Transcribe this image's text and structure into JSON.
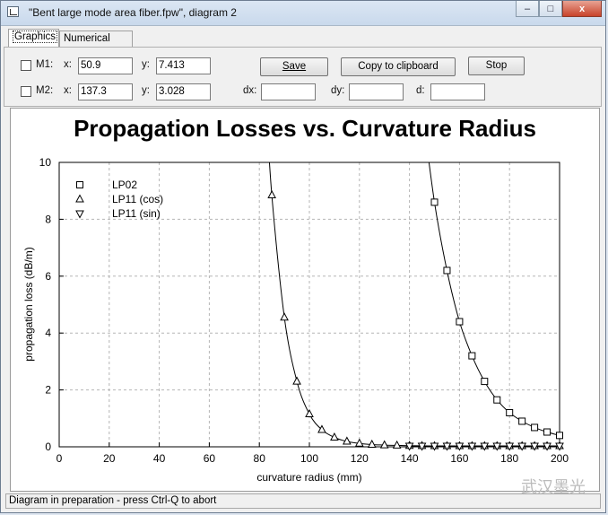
{
  "window": {
    "title": "\"Bent large mode area fiber.fpw\", diagram 2",
    "minimize_glyph": "–",
    "maximize_glyph": "□",
    "close_glyph": "x"
  },
  "tabs": [
    {
      "label": "Graphics",
      "active": true
    },
    {
      "label": "Numerical data",
      "active": false
    }
  ],
  "markers": {
    "m1": {
      "label": "M1:",
      "x_label": "x:",
      "x_value": "50.9",
      "y_label": "y:",
      "y_value": "7.413",
      "checked": false
    },
    "m2": {
      "label": "M2:",
      "x_label": "x:",
      "x_value": "137.3",
      "y_label": "y:",
      "y_value": "3.028",
      "checked": false
    }
  },
  "buttons": {
    "save": "Save",
    "copy": "Copy to clipboard",
    "stop": "Stop"
  },
  "deltas": {
    "dx_label": "dx:",
    "dx_value": "",
    "dy_label": "dy:",
    "dy_value": "",
    "d_label": "d:",
    "d_value": ""
  },
  "status": "Diagram in preparation - press Ctrl-Q to abort",
  "watermark": "武汉墨光",
  "chart_data": {
    "type": "line",
    "title": "Propagation Losses vs. Curvature Radius",
    "xlabel": "curvature radius (mm)",
    "ylabel": "propagation loss (dB/m)",
    "xlim": [
      0,
      200
    ],
    "ylim": [
      0,
      10
    ],
    "xticks": [
      0,
      20,
      40,
      60,
      80,
      100,
      120,
      140,
      160,
      180,
      200
    ],
    "yticks": [
      0,
      2,
      4,
      6,
      8,
      10
    ],
    "grid": true,
    "legend_position": "top-left",
    "series": [
      {
        "name": "LP02",
        "marker": "square",
        "x": [
          150,
          155,
          160,
          165,
          170,
          175,
          180,
          185,
          190,
          195,
          200
        ],
        "y": [
          8.6,
          6.2,
          4.4,
          3.2,
          2.3,
          1.65,
          1.2,
          0.9,
          0.68,
          0.52,
          0.4
        ]
      },
      {
        "name": "LP11 (cos)",
        "marker": "triangle-up",
        "x": [
          85,
          90,
          95,
          100,
          105,
          110,
          115,
          120,
          125,
          130,
          135,
          140,
          145,
          150,
          155,
          160,
          165,
          170,
          175,
          180,
          185,
          190,
          195,
          200
        ],
        "y": [
          8.85,
          4.55,
          2.3,
          1.15,
          0.6,
          0.33,
          0.19,
          0.12,
          0.08,
          0.06,
          0.05,
          0.04,
          0.035,
          0.03,
          0.03,
          0.03,
          0.03,
          0.03,
          0.03,
          0.03,
          0.03,
          0.03,
          0.03,
          0.03
        ]
      },
      {
        "name": "LP11 (sin)",
        "marker": "triangle-down",
        "x": [
          140,
          145,
          150,
          155,
          160,
          165,
          170,
          175,
          180,
          185,
          190,
          195,
          200
        ],
        "y": [
          0.03,
          0.03,
          0.03,
          0.03,
          0.03,
          0.03,
          0.03,
          0.03,
          0.03,
          0.03,
          0.03,
          0.03,
          0.03
        ]
      }
    ]
  }
}
